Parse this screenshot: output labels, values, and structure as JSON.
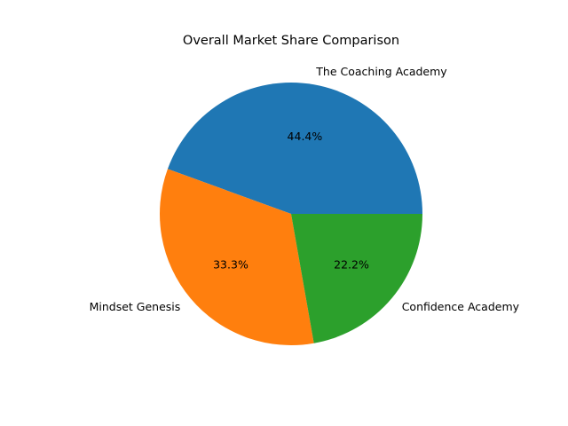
{
  "chart_data": {
    "type": "pie",
    "title": "Overall Market Share Comparison",
    "start_angle_deg": 0,
    "direction": "counterclockwise",
    "slices": [
      {
        "label": "The Coaching Academy",
        "value": 44.4,
        "pct_label": "44.4%",
        "color": "#1f77b4"
      },
      {
        "label": "Mindset Genesis",
        "value": 33.3,
        "pct_label": "33.3%",
        "color": "#ff7f0e"
      },
      {
        "label": "Confidence Academy",
        "value": 22.2,
        "pct_label": "22.2%",
        "color": "#2ca02c"
      }
    ]
  }
}
